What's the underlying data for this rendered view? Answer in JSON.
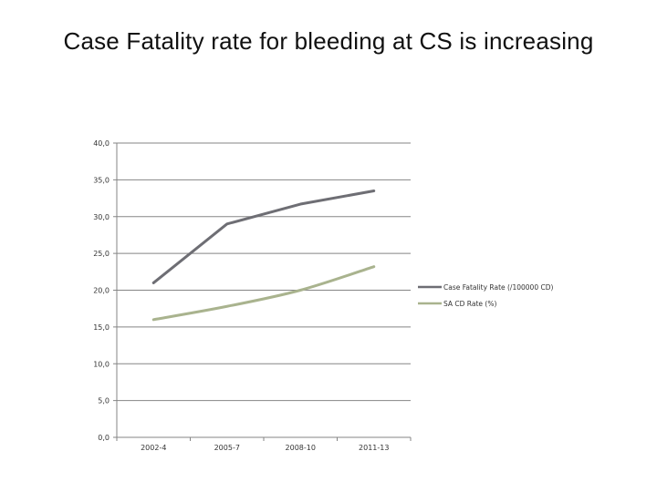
{
  "slide": {
    "title": "Case Fatality rate  for bleeding at CS is increasing"
  },
  "chart_data": {
    "type": "line",
    "title": "",
    "xlabel": "",
    "ylabel": "",
    "categories": [
      "2002-4",
      "2005-7",
      "2008-10",
      "2011-13"
    ],
    "series": [
      {
        "name": "Case Fatality Rate (/100000 CD)",
        "color": "#6e6e74",
        "values": [
          21.0,
          29.0,
          31.7,
          33.5
        ],
        "smooth": false
      },
      {
        "name": "SA CD Rate (%)",
        "color": "#a9b38e",
        "values": [
          16.0,
          17.8,
          20.0,
          23.2
        ],
        "smooth": true
      }
    ],
    "ylim": [
      0,
      40
    ],
    "yticks": [
      "0,0",
      "5,0",
      "10,0",
      "15,0",
      "20,0",
      "25,0",
      "30,0",
      "35,0",
      "40,0"
    ],
    "grid": true,
    "legend": "right"
  }
}
